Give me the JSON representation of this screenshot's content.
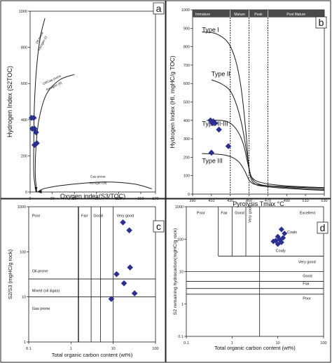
{
  "colors": {
    "marker": "#2b2f8f",
    "line": "#1a1a1a",
    "band": "#4a4a4a",
    "band_text": "#ffffff"
  },
  "chart_data": [
    {
      "id": "a",
      "type": "line",
      "panel_label": "a",
      "xlabel": "Oxygen index(S3/TOC)",
      "ylabel": "Hydrogen Index (S2TOC)",
      "xlim": [
        0,
        170
      ],
      "ylim": [
        0,
        1000
      ],
      "xticks": [
        "0",
        "30",
        "60",
        "90",
        "120",
        "150",
        "170"
      ],
      "yticks": [
        "0",
        "200",
        "400",
        "600",
        "800",
        "1000"
      ],
      "curves": [
        {
          "name": "Oil prone Kerogen (I)",
          "points": [
            [
              8,
              0
            ],
            [
              5,
              100
            ],
            [
              5,
              300
            ],
            [
              6,
              500
            ],
            [
              9,
              700
            ],
            [
              14,
              860
            ],
            [
              20,
              960
            ]
          ]
        },
        {
          "name": "Oil/Gas prone Kerogen (II)",
          "points": [
            [
              9,
              0
            ],
            [
              7,
              100
            ],
            [
              8,
              250
            ],
            [
              12,
              400
            ],
            [
              22,
              540
            ],
            [
              40,
              620
            ],
            [
              60,
              650
            ]
          ]
        },
        {
          "name": "Gas prone Kerogen (iii)",
          "points": [
            [
              10,
              0
            ],
            [
              20,
              20
            ],
            [
              50,
              40
            ],
            [
              100,
              55
            ],
            [
              140,
              45
            ],
            [
              165,
              18
            ]
          ]
        }
      ],
      "curve_labels": [
        {
          "text": "Oil prone",
          "x": 14,
          "y": 850,
          "rot": -62
        },
        {
          "text": "Kerogen (I)",
          "x": 18,
          "y": 820,
          "rot": -62
        },
        {
          "text": "Oil/Gas prone",
          "x": 30,
          "y": 615,
          "rot": -25
        },
        {
          "text": "Kerogen (II)",
          "x": 33,
          "y": 580,
          "rot": -25
        },
        {
          "text": "Gas prone",
          "x": 92,
          "y": 80,
          "rot": 0
        },
        {
          "text": "Kerogen (iii)",
          "x": 92,
          "y": 44,
          "rot": 0
        }
      ],
      "points": [
        [
          2,
          410
        ],
        [
          5,
          410
        ],
        [
          3,
          350
        ],
        [
          6,
          350
        ],
        [
          8,
          330
        ],
        [
          6,
          260
        ],
        [
          9,
          270
        ]
      ]
    },
    {
      "id": "b",
      "type": "line",
      "panel_label": "b",
      "xlabel": "Pyrolysis Tmax °C",
      "ylabel": "Hydrogen Index (HI, mgHC/g TOC)",
      "xlim": [
        390,
        530
      ],
      "ylim": [
        0,
        1000
      ],
      "xticks": [
        "390",
        "410",
        "430",
        "450",
        "470",
        "490",
        "510",
        "530"
      ],
      "yticks": [
        "0",
        "100",
        "200",
        "300",
        "400",
        "500",
        "600",
        "700",
        "800",
        "900",
        "1000"
      ],
      "maturity_zones": [
        {
          "name": "Immature",
          "from": 390,
          "to": 430
        },
        {
          "name": "Mature",
          "from": 430,
          "to": 450
        },
        {
          "name": "Peak",
          "from": 450,
          "to": 470
        },
        {
          "name": "Post Mature",
          "from": 470,
          "to": 530
        }
      ],
      "boundaries": [
        430,
        450,
        470
      ],
      "curves": [
        {
          "name": "Type I",
          "label_at": [
            400,
            880
          ],
          "points": [
            [
              400,
              880
            ],
            [
              415,
              870
            ],
            [
              428,
              820
            ],
            [
              436,
              720
            ],
            [
              442,
              560
            ],
            [
              447,
              320
            ],
            [
              450,
              140
            ],
            [
              455,
              60
            ],
            [
              470,
              40
            ],
            [
              500,
              28
            ],
            [
              530,
              20
            ]
          ]
        },
        {
          "name": "Type II",
          "label_at": [
            410,
            640
          ],
          "points": [
            [
              410,
              620
            ],
            [
              420,
              600
            ],
            [
              430,
              560
            ],
            [
              437,
              480
            ],
            [
              443,
              360
            ],
            [
              448,
              210
            ],
            [
              452,
              100
            ],
            [
              460,
              55
            ],
            [
              480,
              40
            ],
            [
              510,
              30
            ],
            [
              530,
              25
            ]
          ]
        },
        {
          "name": "Type II-III",
          "label_at": [
            400,
            370
          ],
          "points": [
            [
              405,
              400
            ],
            [
              420,
              400
            ],
            [
              430,
              385
            ],
            [
              438,
              340
            ],
            [
              444,
              270
            ],
            [
              449,
              160
            ],
            [
              453,
              90
            ],
            [
              465,
              60
            ],
            [
              490,
              45
            ],
            [
              530,
              35
            ]
          ]
        },
        {
          "name": "Type III",
          "label_at": [
            400,
            170
          ],
          "points": [
            [
              400,
              220
            ],
            [
              420,
              215
            ],
            [
              432,
              200
            ],
            [
              440,
              170
            ],
            [
              446,
              120
            ],
            [
              451,
              70
            ],
            [
              460,
              50
            ],
            [
              490,
              40
            ],
            [
              530,
              32
            ]
          ]
        }
      ],
      "points": [
        [
          409,
          400
        ],
        [
          411,
          385
        ],
        [
          412,
          395
        ],
        [
          414,
          385
        ],
        [
          418,
          350
        ],
        [
          428,
          260
        ],
        [
          410,
          225
        ]
      ]
    },
    {
      "id": "c",
      "type": "scatter",
      "panel_label": "c",
      "xlabel": "Total organic carbon content (wt%)",
      "ylabel": "S2/S3 (mgHC/g rock)",
      "xscale": "log",
      "yscale": "log",
      "xlim": [
        0.1,
        100
      ],
      "ylim": [
        1,
        1000
      ],
      "xticks": [
        "0.1",
        "1",
        "10",
        "100"
      ],
      "yticks": [
        "1",
        "10",
        "100",
        "1000"
      ],
      "vlines": [
        1.5,
        3,
        5,
        10
      ],
      "hlines": [
        10,
        25
      ],
      "region_labels": [
        {
          "text": "Poor",
          "x": 0.12,
          "y": 600
        },
        {
          "text": "Fair",
          "x": 1.75,
          "y": 600
        },
        {
          "text": "Good",
          "x": 3.4,
          "y": 600
        },
        {
          "text": "Very good",
          "x": 12,
          "y": 600
        },
        {
          "text": "Oil-prone",
          "x": 0.12,
          "y": 35
        },
        {
          "text": "Mixed (oil &gas)",
          "x": 0.12,
          "y": 13
        },
        {
          "text": "Gas prone",
          "x": 0.12,
          "y": 5.2
        }
      ],
      "points": [
        [
          17,
          450
        ],
        [
          24,
          300
        ],
        [
          12,
          32
        ],
        [
          25,
          45
        ],
        [
          18,
          20
        ],
        [
          32,
          12
        ],
        [
          9,
          9
        ]
      ]
    },
    {
      "id": "d",
      "type": "scatter",
      "panel_label": "d",
      "xlabel": "Total organic carbon content (wt%)",
      "ylabel": "S2 remaining hydrocarbon(mgHC/g rock)",
      "xscale": "log",
      "yscale": "log",
      "xlim": [
        0.1,
        100
      ],
      "ylim": [
        0.1,
        1000
      ],
      "xticks": [
        "0.1",
        "1",
        "10",
        "100"
      ],
      "yticks": [
        "0.1",
        "1",
        "10",
        "100",
        "1000"
      ],
      "vlines": [
        0.5,
        1,
        2,
        4
      ],
      "hline_segments": [
        {
          "y": 30,
          "from": 0.5,
          "to": 100
        },
        {
          "y": 10,
          "from": 0.1,
          "to": 100
        },
        {
          "y": 5,
          "from": 0.1,
          "to": 100
        },
        {
          "y": 3,
          "from": 0.1,
          "to": 100
        },
        {
          "y": 2,
          "from": 0.1,
          "to": 100
        }
      ],
      "region_labels": [
        {
          "text": "Poor",
          "x": 0.17,
          "y": 600,
          "rot": 0
        },
        {
          "text": "Fair",
          "x": 0.57,
          "y": 600,
          "rot": 0
        },
        {
          "text": "Good",
          "x": 1.15,
          "y": 600,
          "rot": 0
        },
        {
          "text": "Very good",
          "x": 2.6,
          "y": 320,
          "rot": -90
        },
        {
          "text": "Excellent",
          "x": 30,
          "y": 600,
          "rot": 0
        },
        {
          "text": "Coals",
          "x": 16,
          "y": 150,
          "rot": 0
        },
        {
          "text": "Coaly",
          "x": 9,
          "y": 40,
          "rot": 0
        },
        {
          "text": "Very good",
          "x": 28,
          "y": 18,
          "rot": 0
        },
        {
          "text": "Good",
          "x": 35,
          "y": 6.7,
          "rot": 0
        },
        {
          "text": "Fair",
          "x": 35,
          "y": 3.9,
          "rot": 0
        },
        {
          "text": "Poor",
          "x": 35,
          "y": 1.35,
          "rot": 0
        }
      ],
      "points": [
        [
          12,
          200
        ],
        [
          14,
          150
        ],
        [
          10,
          120
        ],
        [
          13,
          110
        ],
        [
          11,
          95
        ],
        [
          9,
          90
        ],
        [
          12,
          80
        ],
        [
          10,
          70
        ],
        [
          8,
          85
        ]
      ]
    }
  ]
}
